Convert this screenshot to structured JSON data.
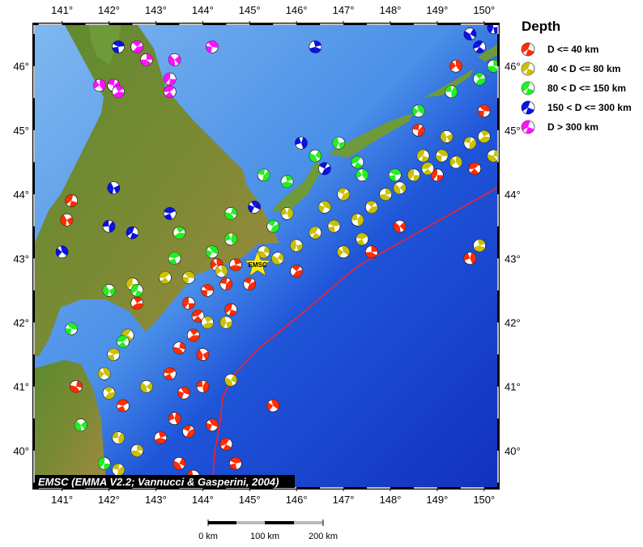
{
  "map": {
    "lon_range": [
      140.42,
      150.28
    ],
    "lat_range": [
      39.43,
      46.64
    ],
    "lon_ticks": [
      "141°",
      "142°",
      "143°",
      "144°",
      "145°",
      "146°",
      "147°",
      "148°",
      "149°",
      "150°"
    ],
    "lon_values": [
      141,
      142,
      143,
      144,
      145,
      146,
      147,
      148,
      149,
      150
    ],
    "lat_ticks": [
      "40°",
      "41°",
      "42°",
      "43°",
      "44°",
      "45°",
      "46°"
    ],
    "lat_values": [
      40,
      41,
      42,
      43,
      44,
      45,
      46
    ],
    "credit": "EMSC (EMMA V2.2; Vannucci & Gasperini, 2004)",
    "epicenter": {
      "label": "EMSC",
      "lon": 145.17,
      "lat": 42.9,
      "color": "#ffee00"
    },
    "trench_color": "#ff2020"
  },
  "legend": {
    "title": "Depth",
    "items": [
      {
        "label": "D <= 40 km",
        "color": "#ff2a00"
      },
      {
        "label": "40 < D <= 80 km",
        "color": "#c8c000"
      },
      {
        "label": "80 < D <= 150 km",
        "color": "#22ee22"
      },
      {
        "label": "150 < D <= 300 km",
        "color": "#0a10e0"
      },
      {
        "label": "D > 300 km",
        "color": "#ff10ff"
      }
    ]
  },
  "scale_bar": {
    "labels": [
      "0 km",
      "100 km",
      "200 km"
    ]
  },
  "events": [
    [
      143.7,
      42.3,
      1
    ],
    [
      143.9,
      42.1,
      1
    ],
    [
      144.1,
      42.5,
      1
    ],
    [
      144.3,
      42.9,
      1
    ],
    [
      144.5,
      42.6,
      1
    ],
    [
      143.8,
      41.8,
      1
    ],
    [
      143.5,
      41.6,
      1
    ],
    [
      144.0,
      41.5,
      1
    ],
    [
      144.6,
      42.2,
      1
    ],
    [
      143.3,
      41.2,
      1
    ],
    [
      143.6,
      40.9,
      1
    ],
    [
      143.4,
      40.5,
      1
    ],
    [
      143.7,
      40.3,
      1
    ],
    [
      143.1,
      40.2,
      1
    ],
    [
      143.5,
      39.8,
      1
    ],
    [
      143.8,
      39.6,
      1
    ],
    [
      144.5,
      40.1,
      1
    ],
    [
      144.7,
      39.8,
      1
    ],
    [
      145.5,
      40.7,
      1
    ],
    [
      144.0,
      41.0,
      1
    ],
    [
      146.0,
      42.8,
      1
    ],
    [
      147.6,
      43.1,
      1
    ],
    [
      148.2,
      43.5,
      1
    ],
    [
      149.0,
      44.3,
      1
    ],
    [
      149.8,
      44.4,
      1
    ],
    [
      150.0,
      45.3,
      1
    ],
    [
      149.4,
      46.0,
      1
    ],
    [
      148.6,
      45.0,
      1
    ],
    [
      142.6,
      42.3,
      1
    ],
    [
      141.3,
      41.0,
      1
    ],
    [
      141.1,
      43.6,
      1
    ],
    [
      141.2,
      43.9,
      1
    ],
    [
      142.3,
      40.7,
      1
    ],
    [
      144.2,
      40.4,
      1
    ],
    [
      149.7,
      43.0,
      1
    ],
    [
      145.0,
      42.6,
      1
    ],
    [
      144.7,
      42.9,
      1
    ],
    [
      145.6,
      43.0,
      2
    ],
    [
      146.0,
      43.2,
      2
    ],
    [
      146.4,
      43.4,
      2
    ],
    [
      146.8,
      43.5,
      2
    ],
    [
      147.0,
      43.1,
      2
    ],
    [
      147.3,
      43.6,
      2
    ],
    [
      147.6,
      43.8,
      2
    ],
    [
      147.9,
      44.0,
      2
    ],
    [
      148.2,
      44.1,
      2
    ],
    [
      148.5,
      44.3,
      2
    ],
    [
      148.8,
      44.4,
      2
    ],
    [
      149.1,
      44.6,
      2
    ],
    [
      149.4,
      44.5,
      2
    ],
    [
      149.7,
      44.8,
      2
    ],
    [
      150.0,
      44.9,
      2
    ],
    [
      150.2,
      44.6,
      2
    ],
    [
      149.2,
      44.9,
      2
    ],
    [
      148.7,
      44.6,
      2
    ],
    [
      147.4,
      43.3,
      2
    ],
    [
      146.6,
      43.8,
      2
    ],
    [
      145.8,
      43.7,
      2
    ],
    [
      147.0,
      44.0,
      2
    ],
    [
      149.9,
      43.2,
      2
    ],
    [
      144.6,
      41.1,
      2
    ],
    [
      144.5,
      42.0,
      2
    ],
    [
      142.4,
      41.8,
      2
    ],
    [
      142.1,
      41.5,
      2
    ],
    [
      141.9,
      41.2,
      2
    ],
    [
      142.2,
      40.2,
      2
    ],
    [
      142.0,
      40.9,
      2
    ],
    [
      142.6,
      40.0,
      2
    ],
    [
      142.8,
      41.0,
      2
    ],
    [
      142.5,
      42.6,
      2
    ],
    [
      143.2,
      42.7,
      2
    ],
    [
      143.7,
      42.7,
      2
    ],
    [
      144.4,
      42.8,
      2
    ],
    [
      142.2,
      39.7,
      2
    ],
    [
      144.1,
      42.0,
      2
    ],
    [
      145.3,
      43.1,
      2
    ],
    [
      142.0,
      42.5,
      3
    ],
    [
      142.6,
      42.5,
      3
    ],
    [
      143.4,
      43.0,
      3
    ],
    [
      144.2,
      43.1,
      3
    ],
    [
      144.6,
      43.3,
      3
    ],
    [
      145.5,
      43.5,
      3
    ],
    [
      145.8,
      44.2,
      3
    ],
    [
      146.4,
      44.6,
      3
    ],
    [
      146.9,
      44.8,
      3
    ],
    [
      147.3,
      44.5,
      3
    ],
    [
      148.1,
      44.3,
      3
    ],
    [
      148.6,
      45.3,
      3
    ],
    [
      149.3,
      45.6,
      3
    ],
    [
      149.9,
      45.8,
      3
    ],
    [
      150.2,
      46.0,
      3
    ],
    [
      141.4,
      40.4,
      3
    ],
    [
      141.9,
      39.8,
      3
    ],
    [
      142.3,
      41.7,
      3
    ],
    [
      141.2,
      41.9,
      3
    ],
    [
      147.4,
      44.3,
      3
    ],
    [
      145.3,
      44.3,
      3
    ],
    [
      143.5,
      43.4,
      3
    ],
    [
      144.6,
      43.7,
      3
    ],
    [
      142.1,
      44.1,
      4
    ],
    [
      142.5,
      43.4,
      4
    ],
    [
      143.3,
      43.7,
      4
    ],
    [
      145.1,
      43.8,
      4
    ],
    [
      146.1,
      44.8,
      4
    ],
    [
      146.6,
      44.4,
      4
    ],
    [
      146.4,
      46.3,
      4
    ],
    [
      149.7,
      46.5,
      4
    ],
    [
      150.2,
      46.6,
      4
    ],
    [
      149.9,
      46.3,
      4
    ],
    [
      142.2,
      46.3,
      4
    ],
    [
      141.0,
      43.1,
      4
    ],
    [
      142.0,
      43.5,
      4
    ],
    [
      142.6,
      46.3,
      5
    ],
    [
      142.8,
      46.1,
      5
    ],
    [
      143.4,
      46.1,
      5
    ],
    [
      143.3,
      45.8,
      5
    ],
    [
      143.3,
      45.6,
      5
    ],
    [
      144.2,
      46.3,
      5
    ],
    [
      141.8,
      45.7,
      5
    ],
    [
      142.1,
      45.7,
      5
    ],
    [
      142.2,
      45.6,
      5
    ]
  ]
}
